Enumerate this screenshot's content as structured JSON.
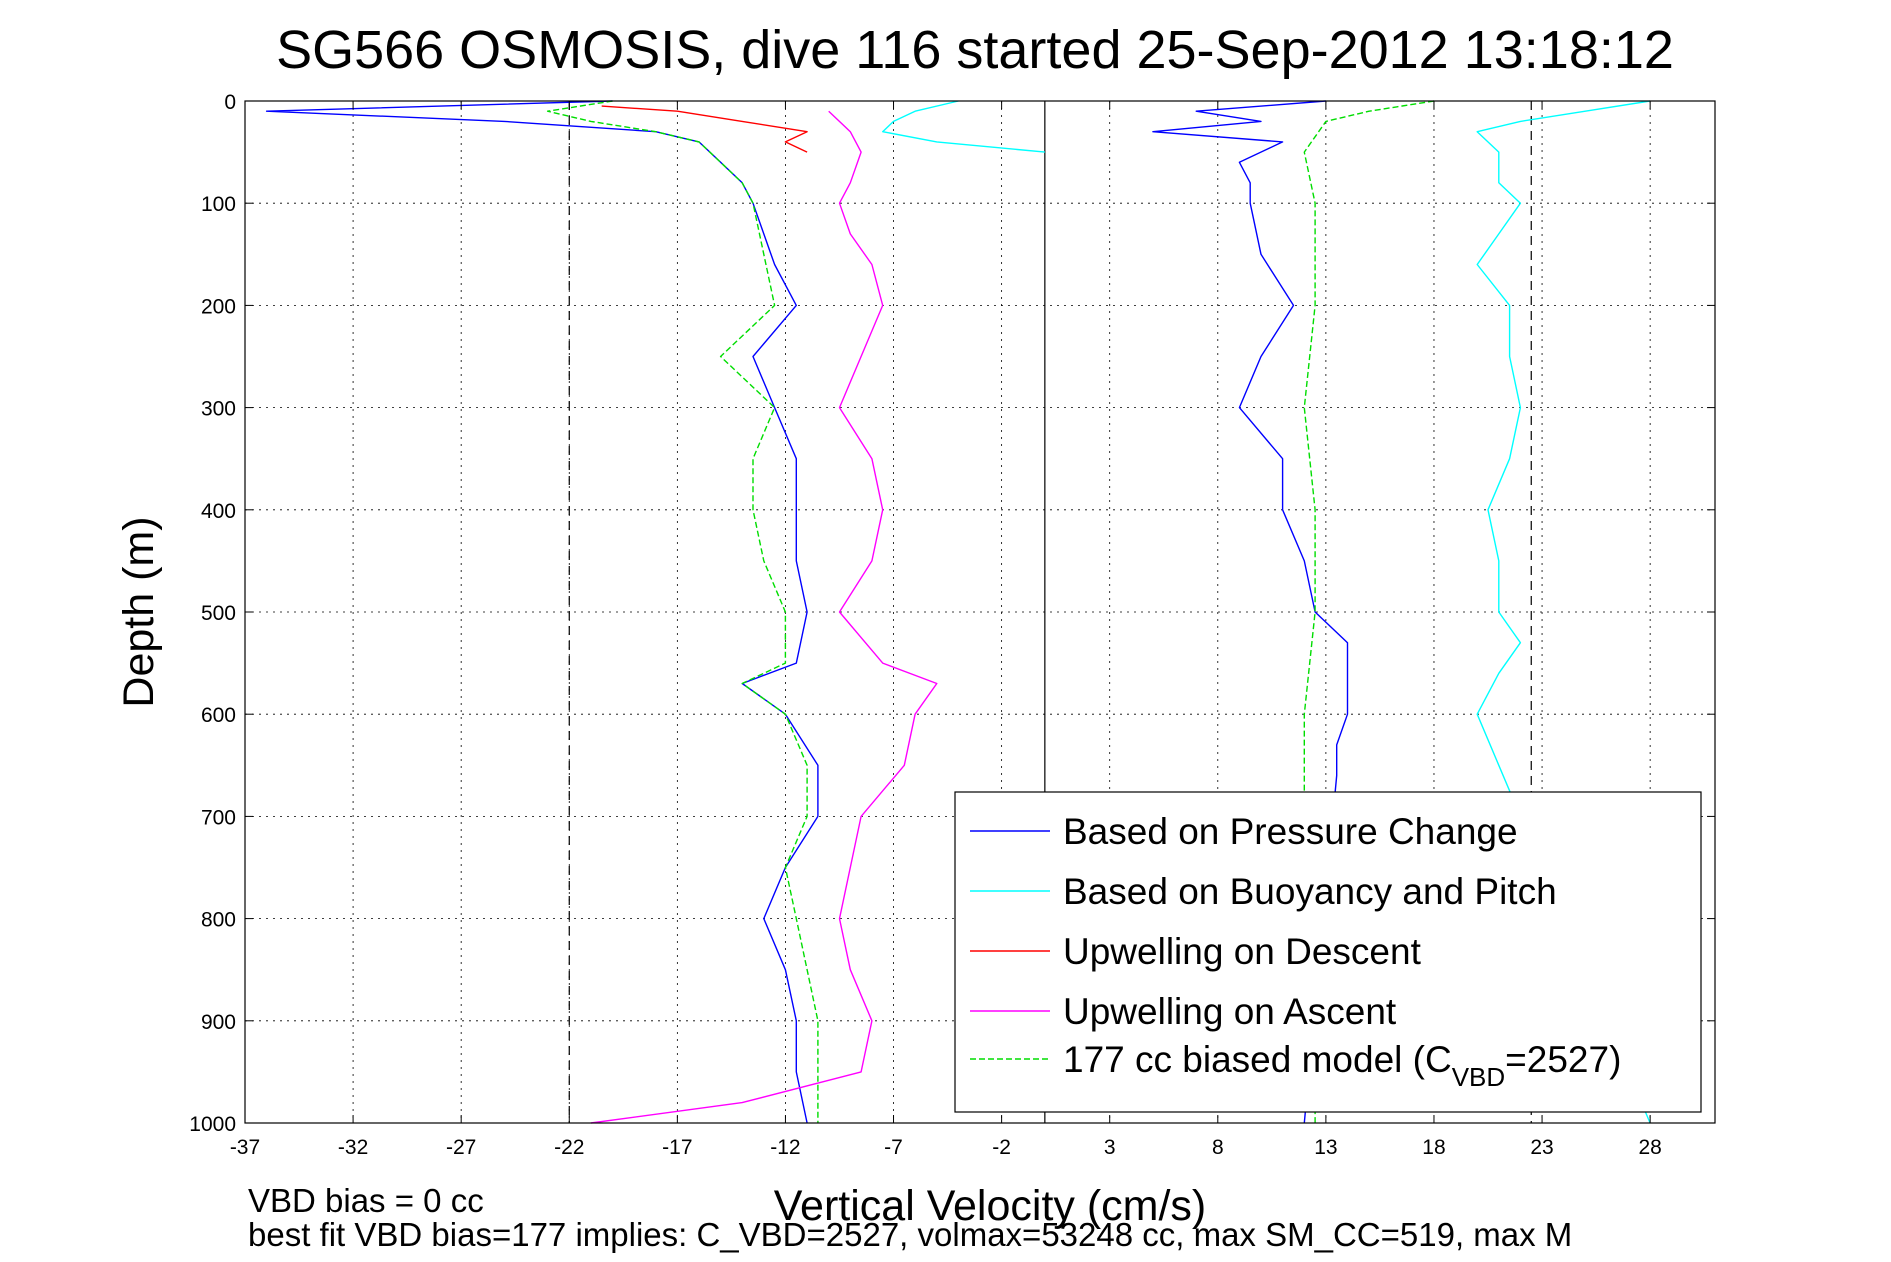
{
  "chart_data": {
    "type": "line",
    "title": "SG566 OSMOSIS, dive 116 started 25-Sep-2012 13:18:12",
    "xlabel": "Vertical Velocity (cm/s)",
    "ylabel": "Depth (m)",
    "xlim": [
      -37,
      31
    ],
    "ylim": [
      0,
      1000
    ],
    "y_reversed": true,
    "xticks": [
      -37,
      -32,
      -27,
      -22,
      -17,
      -12,
      -7,
      -2,
      3,
      8,
      13,
      18,
      23,
      28
    ],
    "yticks": [
      0,
      100,
      200,
      300,
      400,
      500,
      600,
      700,
      800,
      900,
      1000
    ],
    "grid": true,
    "legend_position": "bottom-right",
    "reference_lines": [
      {
        "x": -22,
        "style": "dashed"
      },
      {
        "x": 0,
        "style": "solid"
      },
      {
        "x": 22.5,
        "style": "dashed"
      }
    ],
    "series": [
      {
        "name": "Based on Pressure Change",
        "color": "#0000ff",
        "segments": [
          {
            "depth": [
              0,
              10,
              20,
              30,
              40,
              60,
              80,
              100,
              130,
              160,
              200,
              250,
              300,
              350,
              400,
              450,
              500,
              550,
              570,
              600,
              650,
              700,
              750,
              800,
              850,
              900,
              950,
              1000
            ],
            "velocity": [
              -20,
              -36,
              -25,
              -18,
              -16,
              -15,
              -14,
              -13.5,
              -13,
              -12.5,
              -11.5,
              -13.5,
              -12.5,
              -11.5,
              -11.5,
              -11.5,
              -11,
              -11.5,
              -14,
              -12,
              -10.5,
              -10.5,
              -12,
              -13,
              -12,
              -11.5,
              -11.5,
              -11
            ]
          },
          {
            "depth": [
              0,
              10,
              20,
              30,
              40,
              60,
              80,
              100,
              150,
              200,
              250,
              300,
              350,
              400,
              450,
              500,
              530,
              560,
              600,
              630,
              660,
              1000
            ],
            "velocity": [
              13,
              7,
              10,
              5,
              11,
              9,
              9.5,
              9.5,
              10,
              11.5,
              10,
              9,
              11,
              11,
              12,
              12.5,
              14,
              14,
              14,
              13.5,
              13.5,
              12
            ]
          }
        ]
      },
      {
        "name": "Based on Buoyancy and Pitch",
        "color": "#00ffff",
        "segments": [
          {
            "depth": [
              0,
              10,
              20,
              30,
              40,
              50
            ],
            "velocity": [
              -4,
              -6,
              -7,
              -7.5,
              -5,
              0
            ]
          },
          {
            "depth": [
              0,
              10,
              20,
              30,
              50,
              80,
              100,
              130,
              160,
              200,
              250,
              300,
              350,
              400,
              450,
              500,
              530,
              560,
              600,
              650,
              1000
            ],
            "velocity": [
              28,
              25,
              22,
              20,
              21,
              21,
              22,
              21,
              20,
              21.5,
              21.5,
              22,
              21.5,
              20.5,
              21,
              21,
              22,
              21,
              20,
              21,
              28
            ]
          }
        ]
      },
      {
        "name": "Upwelling on Descent",
        "color": "#ff0000",
        "segments": [
          {
            "depth": [
              5,
              10,
              20,
              30,
              40,
              50
            ],
            "velocity": [
              -20.5,
              -17,
              -14,
              -11,
              -12,
              -11
            ]
          }
        ]
      },
      {
        "name": "Upwelling on Ascent",
        "color": "#ff00ff",
        "segments": [
          {
            "depth": [
              10,
              30,
              50,
              80,
              100,
              130,
              160,
              200,
              250,
              300,
              350,
              400,
              450,
              500,
              550,
              570,
              600,
              650,
              700,
              750,
              800,
              850,
              900,
              950,
              980,
              1000
            ],
            "velocity": [
              -10,
              -9,
              -8.5,
              -9,
              -9.5,
              -9,
              -8,
              -7.5,
              -8.5,
              -9.5,
              -8,
              -7.5,
              -8,
              -9.5,
              -7.5,
              -5,
              -6,
              -6.5,
              -8.5,
              -9,
              -9.5,
              -9,
              -8,
              -8.5,
              -14,
              -21
            ]
          }
        ]
      },
      {
        "name": "177 cc biased model (C",
        "name_subscript": "VBD",
        "name_suffix": "=2527)",
        "color": "#00dd00",
        "dashed": true,
        "segments": [
          {
            "depth": [
              0,
              10,
              20,
              30,
              40,
              60,
              80,
              100,
              150,
              200,
              250,
              300,
              350,
              400,
              450,
              500,
              550,
              570,
              600,
              650,
              700,
              750,
              800,
              850,
              900,
              950,
              1000
            ],
            "velocity": [
              -20,
              -23,
              -21,
              -18,
              -16,
              -15,
              -14,
              -13.5,
              -13,
              -12.5,
              -15,
              -12.5,
              -13.5,
              -13.5,
              -13,
              -12,
              -12,
              -14,
              -12,
              -11,
              -11,
              -12,
              -11.5,
              -11,
              -10.5,
              -10.5,
              -10.5
            ]
          },
          {
            "depth": [
              0,
              10,
              20,
              50,
              100,
              200,
              300,
              400,
              500,
              600,
              700,
              800,
              1000
            ],
            "velocity": [
              18,
              15,
              13,
              12,
              12.5,
              12.5,
              12,
              12.5,
              12.5,
              12,
              12,
              12.5,
              12.5
            ]
          }
        ]
      }
    ]
  },
  "notes": {
    "line1": "VBD bias = 0 cc",
    "line2": "best fit VBD bias=177 implies: C_VBD=2527, volmax=53248 cc, max SM_CC=519, max M"
  }
}
